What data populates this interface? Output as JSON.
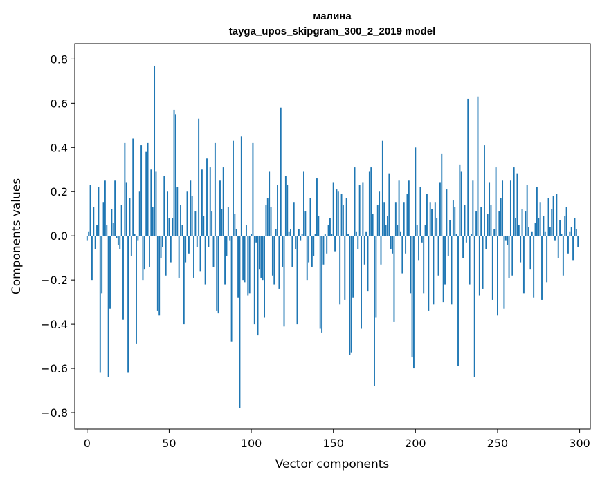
{
  "chart_data": {
    "type": "bar",
    "title": "малина",
    "subtitle": "tayga_upos_skipgram_300_2_2019 model",
    "xlabel": "Vector components",
    "ylabel": "Components values",
    "xlim": [
      -7.5,
      306.5
    ],
    "ylim": [
      -0.875,
      0.87
    ],
    "xticks": [
      0,
      50,
      100,
      150,
      200,
      250,
      300
    ],
    "yticks": [
      -0.8,
      -0.6,
      -0.4,
      -0.2,
      0.0,
      0.2,
      0.4,
      0.6,
      0.8
    ],
    "xtick_labels": [
      "0",
      "50",
      "100",
      "150",
      "200",
      "250",
      "300"
    ],
    "ytick_labels": [
      "−0.8",
      "−0.6",
      "−0.4",
      "−0.2",
      "0.0",
      "0.2",
      "0.4",
      "0.6",
      "0.8"
    ],
    "grid": false,
    "legend": "none",
    "bar_color": "#1f77b4",
    "values": [
      -0.02,
      0.02,
      0.23,
      -0.2,
      0.13,
      -0.06,
      0.05,
      0.22,
      -0.62,
      -0.26,
      0.15,
      0.25,
      0.05,
      -0.64,
      -0.33,
      0.12,
      0.06,
      0.25,
      -0.01,
      -0.04,
      -0.06,
      0.14,
      -0.38,
      0.42,
      0.24,
      -0.62,
      0.17,
      -0.09,
      0.44,
      0.01,
      -0.49,
      -0.02,
      0.2,
      0.41,
      -0.2,
      -0.15,
      0.38,
      0.42,
      -0.14,
      0.3,
      0.13,
      0.77,
      0.29,
      -0.34,
      -0.36,
      -0.1,
      -0.05,
      0.27,
      -0.18,
      0.2,
      0.08,
      -0.12,
      0.08,
      0.57,
      0.55,
      0.22,
      -0.19,
      0.14,
      0.05,
      -0.4,
      -0.12,
      0.2,
      -0.08,
      0.25,
      0.18,
      -0.19,
      0.11,
      -0.05,
      0.53,
      -0.16,
      0.3,
      0.09,
      -0.22,
      0.35,
      -0.05,
      0.31,
      0.11,
      -0.14,
      0.42,
      -0.34,
      -0.35,
      0.25,
      0.12,
      0.31,
      -0.22,
      -0.09,
      0.13,
      -0.02,
      -0.48,
      0.43,
      0.1,
      0.03,
      -0.28,
      -0.78,
      0.45,
      -0.2,
      -0.21,
      0.05,
      -0.27,
      -0.26,
      0.01,
      0.42,
      -0.4,
      -0.03,
      -0.45,
      -0.15,
      -0.19,
      -0.2,
      -0.37,
      0.14,
      0.17,
      0.29,
      0.13,
      -0.18,
      -0.22,
      0.03,
      0.23,
      -0.24,
      0.58,
      -0.14,
      -0.41,
      0.27,
      0.23,
      0.02,
      0.03,
      -0.14,
      0.15,
      -0.06,
      -0.4,
      0.03,
      -0.02,
      0.01,
      0.29,
      0.11,
      -0.2,
      -0.12,
      0.17,
      -0.14,
      -0.09,
      0.01,
      0.26,
      0.09,
      -0.42,
      -0.44,
      -0.13,
      0.01,
      -0.08,
      0.05,
      0.08,
      0.01,
      0.24,
      -0.07,
      0.21,
      0.2,
      -0.31,
      0.19,
      0.14,
      -0.29,
      0.17,
      0.01,
      -0.54,
      -0.53,
      -0.28,
      0.31,
      0.02,
      -0.06,
      0.23,
      -0.42,
      0.24,
      -0.13,
      0.02,
      -0.25,
      0.29,
      0.31,
      0.1,
      -0.68,
      -0.37,
      0.14,
      0.2,
      -0.13,
      0.43,
      0.15,
      0.05,
      0.09,
      0.28,
      -0.06,
      -0.08,
      -0.39,
      0.15,
      0.05,
      0.25,
      0.02,
      -0.17,
      0.15,
      -0.08,
      0.19,
      0.25,
      -0.26,
      -0.55,
      -0.6,
      0.4,
      0.05,
      -0.11,
      0.22,
      -0.03,
      -0.26,
      0.05,
      0.19,
      -0.34,
      0.15,
      0.12,
      -0.31,
      0.15,
      0.08,
      -0.18,
      0.24,
      0.37,
      -0.3,
      -0.22,
      0.21,
      -0.09,
      0.07,
      -0.31,
      0.16,
      0.13,
      0.01,
      -0.59,
      0.32,
      0.29,
      -0.1,
      0.14,
      -0.03,
      0.62,
      -0.22,
      0.01,
      0.25,
      -0.64,
      0.11,
      0.63,
      -0.27,
      0.13,
      -0.24,
      0.41,
      -0.06,
      0.1,
      0.24,
      0.14,
      -0.29,
      0.03,
      0.31,
      -0.36,
      0.11,
      0.17,
      0.25,
      -0.33,
      -0.02,
      -0.04,
      -0.19,
      0.25,
      -0.18,
      0.31,
      0.08,
      0.28,
      0.05,
      -0.12,
      0.12,
      -0.26,
      0.11,
      0.23,
      0.04,
      -0.15,
      0.02,
      -0.28,
      0.06,
      0.22,
      0.08,
      0.15,
      -0.29,
      0.09,
      0.02,
      -0.21,
      0.17,
      0.04,
      0.12,
      0.18,
      -0.02,
      0.19,
      -0.1,
      0.07,
      0.01,
      -0.18,
      0.09,
      0.13,
      -0.08,
      0.02,
      0.04,
      -0.11,
      0.08,
      0.03,
      -0.05
    ]
  }
}
